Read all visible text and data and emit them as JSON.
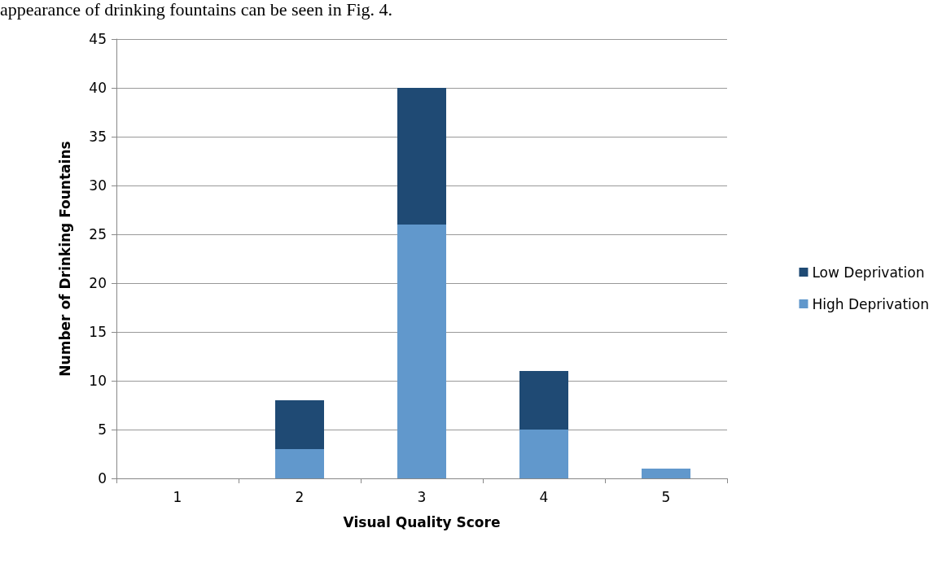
{
  "chart_data": {
    "type": "bar",
    "stacked": true,
    "xlabel": "Visual Quality Score",
    "ylabel": "Number of Drinking Fountains",
    "annotations": [
      "appearance of drinking fountains can be seen in Fig. 4."
    ],
    "categories": [
      "1",
      "2",
      "3",
      "4",
      "5"
    ],
    "series": [
      {
        "name": "High Deprivation",
        "color": "#6198cc",
        "values": [
          0,
          3,
          26,
          5,
          1
        ]
      },
      {
        "name": "Low Deprivation",
        "color": "#1f4a74",
        "values": [
          0,
          5,
          14,
          6,
          0
        ]
      }
    ],
    "ylim": [
      0,
      45
    ],
    "yticks": [
      0,
      5,
      10,
      15,
      20,
      25,
      30,
      35,
      40,
      45
    ],
    "grid": "y",
    "legend": "right"
  }
}
